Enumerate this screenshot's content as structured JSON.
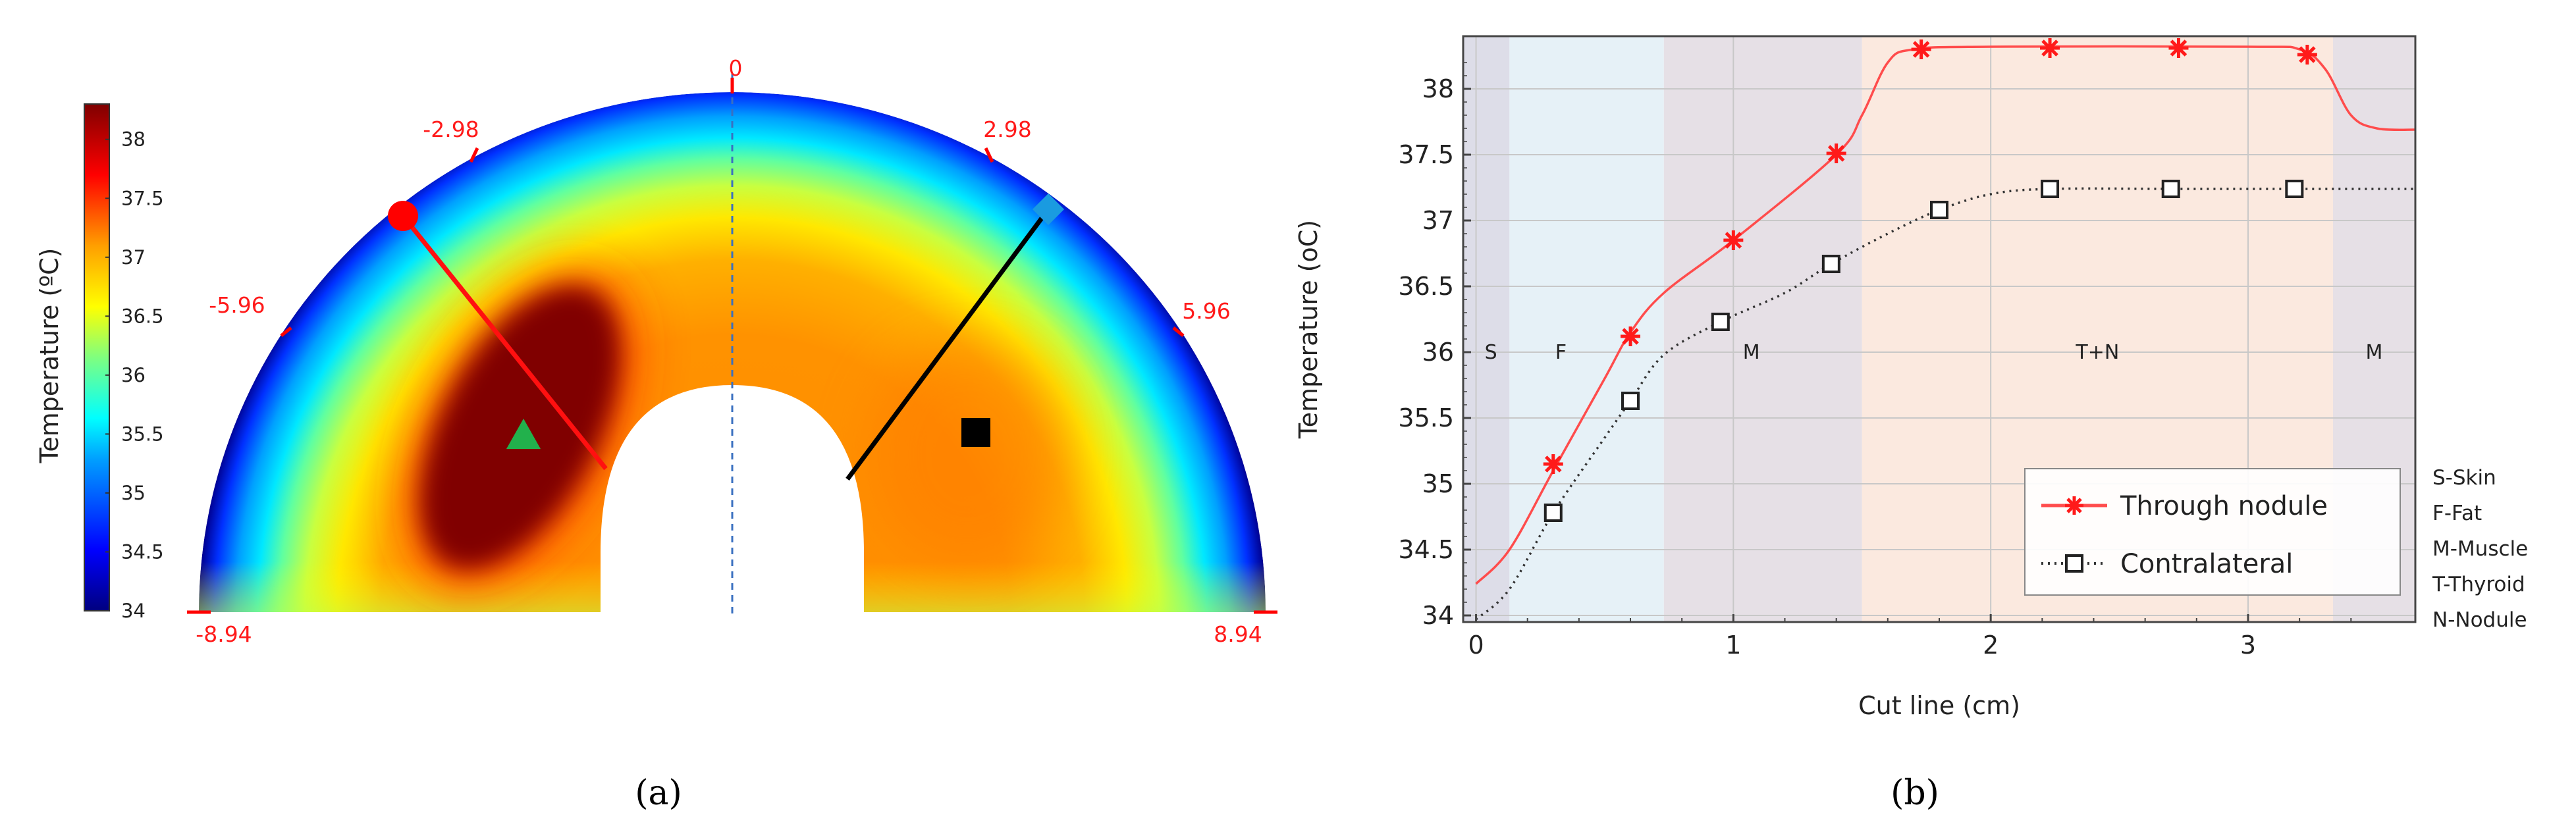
{
  "panels": {
    "a": {
      "caption": "(a)",
      "colorbar": {
        "label": "Temperature (ºC)",
        "ticks": [
          "38",
          "37.5",
          "37",
          "36.5",
          "36",
          "35.5",
          "35",
          "34.5",
          "34"
        ],
        "range": [
          34,
          38.3
        ],
        "colors": [
          "#00007f",
          "#0000ff",
          "#00a0ff",
          "#00ffff",
          "#7fff7f",
          "#ffff00",
          "#ff9f00",
          "#ff0000",
          "#7f0000"
        ]
      },
      "angle_ticks": [
        "-8.94",
        "-5.96",
        "-2.98",
        "0",
        "2.98",
        "5.96",
        "8.94"
      ],
      "markers": {
        "circle": {
          "color": "#ff0000"
        },
        "diamond": {
          "color": "#1a9be0"
        },
        "triangle": {
          "color": "#22b14c"
        },
        "square": {
          "color": "#000000"
        }
      }
    },
    "b": {
      "caption": "(b)",
      "region_labels": [
        "S",
        "F",
        "M",
        "T+N",
        "M"
      ],
      "abbreviations": [
        "S-Skin",
        "F-Fat",
        "M-Muscle",
        "T-Thyroid",
        "N-Nodule"
      ]
    }
  },
  "chart_data": {
    "type": "line",
    "xlabel": "Cut line (cm)",
    "ylabel": "Temperature (oC)",
    "xlim": [
      -0.05,
      3.65
    ],
    "ylim": [
      33.95,
      38.4
    ],
    "xticks": [
      "0",
      "1",
      "2",
      "3"
    ],
    "yticks": [
      "34",
      "34.5",
      "35",
      "35.5",
      "36",
      "36.5",
      "37",
      "37.5",
      "38"
    ],
    "grid": true,
    "legend_position": "bottom-right",
    "regions": [
      {
        "label": "S",
        "x0": -0.05,
        "x1": 0.13,
        "color": "#dddde8"
      },
      {
        "label": "F",
        "x0": 0.13,
        "x1": 0.73,
        "color": "#e6f1f7"
      },
      {
        "label": "M",
        "x0": 0.73,
        "x1": 1.5,
        "color": "#e6e0e6"
      },
      {
        "label": "T+N",
        "x0": 1.5,
        "x1": 3.33,
        "color": "#fbe9df"
      },
      {
        "label": "M",
        "x0": 3.33,
        "x1": 3.65,
        "color": "#e6e0e6"
      }
    ],
    "series": [
      {
        "name": "Through nodule",
        "color": "#ff4c4c",
        "line_style": "solid",
        "marker": "star",
        "curve": [
          [
            0,
            34.24
          ],
          [
            0.13,
            34.5
          ],
          [
            0.3,
            35.1
          ],
          [
            0.5,
            35.8
          ],
          [
            0.6,
            36.15
          ],
          [
            0.73,
            36.45
          ],
          [
            1.0,
            36.85
          ],
          [
            1.4,
            37.5
          ],
          [
            1.5,
            37.8
          ],
          [
            1.6,
            38.2
          ],
          [
            1.7,
            38.3
          ],
          [
            2.0,
            38.32
          ],
          [
            3.0,
            38.32
          ],
          [
            3.2,
            38.3
          ],
          [
            3.3,
            38.15
          ],
          [
            3.4,
            37.8
          ],
          [
            3.5,
            37.7
          ],
          [
            3.65,
            37.69
          ]
        ],
        "markers": [
          [
            0.3,
            35.15
          ],
          [
            0.6,
            36.12
          ],
          [
            1.0,
            36.85
          ],
          [
            1.4,
            37.51
          ],
          [
            1.73,
            38.3
          ],
          [
            2.23,
            38.31
          ],
          [
            2.73,
            38.31
          ],
          [
            3.23,
            38.26
          ]
        ]
      },
      {
        "name": "Contralateral",
        "color": "#333333",
        "line_style": "dotted",
        "marker": "square",
        "curve": [
          [
            0,
            33.97
          ],
          [
            0.13,
            34.2
          ],
          [
            0.3,
            34.78
          ],
          [
            0.5,
            35.35
          ],
          [
            0.6,
            35.63
          ],
          [
            0.73,
            35.98
          ],
          [
            0.95,
            36.23
          ],
          [
            1.2,
            36.45
          ],
          [
            1.38,
            36.67
          ],
          [
            1.6,
            36.9
          ],
          [
            1.8,
            37.08
          ],
          [
            2.0,
            37.2
          ],
          [
            2.23,
            37.24
          ],
          [
            2.73,
            37.24
          ],
          [
            3.18,
            37.24
          ],
          [
            3.65,
            37.24
          ]
        ],
        "markers": [
          [
            0.3,
            34.78
          ],
          [
            0.6,
            35.63
          ],
          [
            0.95,
            36.23
          ],
          [
            1.38,
            36.67
          ],
          [
            1.8,
            37.08
          ],
          [
            2.23,
            37.24
          ],
          [
            2.7,
            37.24
          ],
          [
            3.18,
            37.24
          ]
        ]
      }
    ]
  }
}
